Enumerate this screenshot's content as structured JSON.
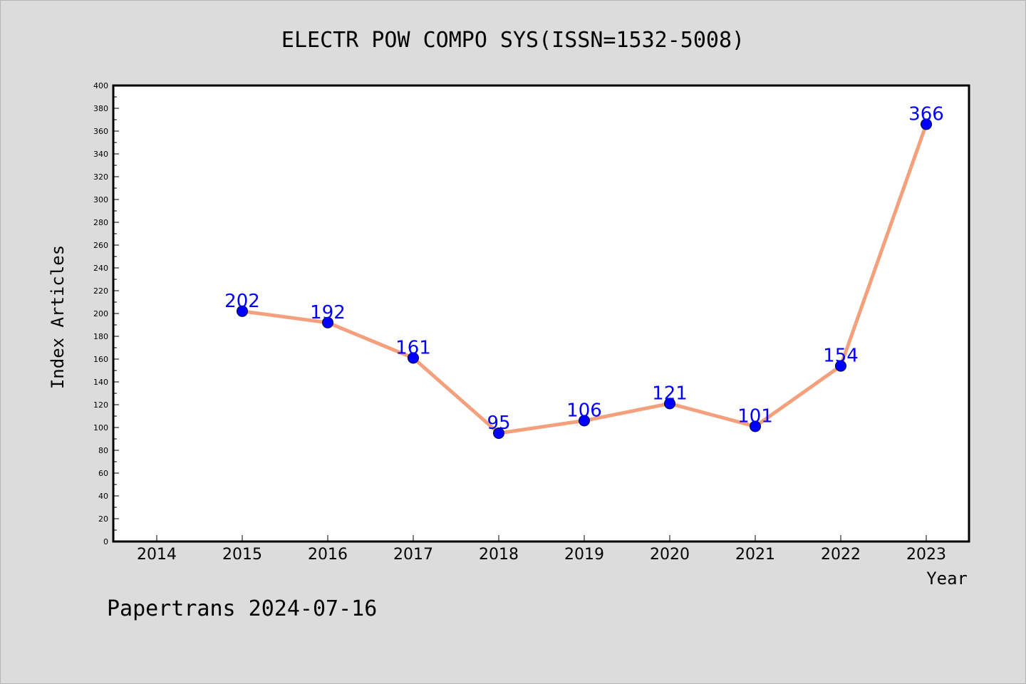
{
  "chart_data": {
    "type": "line",
    "title": "ELECTR POW COMPO SYS(ISSN=1532-5008)",
    "xlabel": "Year",
    "ylabel": "Index Articles",
    "categories": [
      "2014",
      "2015",
      "2016",
      "2017",
      "2018",
      "2019",
      "2020",
      "2021",
      "2022",
      "2023"
    ],
    "x": [
      2015,
      2016,
      2017,
      2018,
      2019,
      2020,
      2021,
      2022,
      2023
    ],
    "series": [
      {
        "values": [
          202,
          192,
          161,
          95,
          106,
          121,
          101,
          154,
          366
        ],
        "data_labels": [
          "202",
          "192",
          "161",
          "95",
          "106",
          "121",
          "101",
          "154",
          "366"
        ]
      }
    ],
    "ylim": [
      0,
      400
    ],
    "y_ticks": [
      "0",
      "20",
      "40",
      "60",
      "80",
      "100",
      "120",
      "140",
      "160",
      "180",
      "200",
      "220",
      "240",
      "260",
      "280",
      "300",
      "320",
      "340",
      "360",
      "380",
      "400"
    ],
    "grid": false,
    "legend": "none",
    "colors": {
      "line": "#f4a07c",
      "marker": "#0000ff",
      "label": "#0000ff",
      "background": "#dcdcdc",
      "plot_background": "#ffffff"
    }
  },
  "footer": "Papertrans 2024-07-16"
}
